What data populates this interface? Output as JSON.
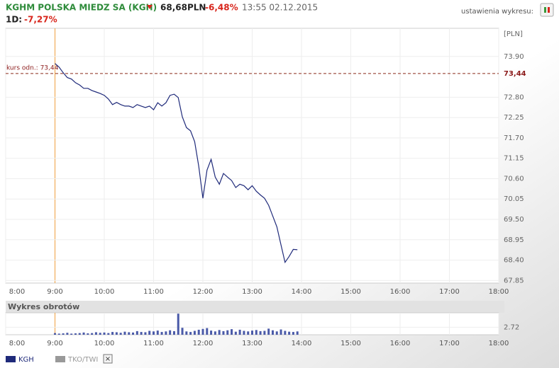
{
  "header": {
    "name": "KGHM POLSKA MIEDZ SA (KGH)",
    "price": "68,68PLN",
    "change": "-6,48%",
    "time": "13:55 02.12.2015",
    "period": "1D:",
    "period_change": "-7,27%",
    "settings": "ustawienia wykresu:"
  },
  "footer": {
    "compare": "TKO/TWI",
    "close": "×"
  },
  "chart_data": [
    {
      "type": "line",
      "y_unit": "[PLN]",
      "x": [
        "9:00",
        "9:05",
        "9:10",
        "9:15",
        "9:20",
        "9:25",
        "9:30",
        "9:35",
        "9:40",
        "9:45",
        "9:50",
        "9:55",
        "10:00",
        "10:05",
        "10:10",
        "10:15",
        "10:20",
        "10:25",
        "10:30",
        "10:35",
        "10:40",
        "10:45",
        "10:50",
        "10:55",
        "11:00",
        "11:05",
        "11:10",
        "11:15",
        "11:20",
        "11:25",
        "11:30",
        "11:35",
        "11:40",
        "11:45",
        "11:50",
        "11:55",
        "12:00",
        "12:05",
        "12:10",
        "12:15",
        "12:20",
        "12:25",
        "12:30",
        "12:35",
        "12:40",
        "12:45",
        "12:50",
        "12:55",
        "13:00",
        "13:05",
        "13:10",
        "13:15",
        "13:20",
        "13:25",
        "13:30",
        "13:35",
        "13:40",
        "13:45",
        "13:50",
        "13:55"
      ],
      "series": [
        {
          "name": "KGH",
          "color": "#1f2a7a",
          "values": [
            73.71,
            73.61,
            73.46,
            73.33,
            73.29,
            73.19,
            73.13,
            73.04,
            73.04,
            72.98,
            72.94,
            72.9,
            72.85,
            72.75,
            72.6,
            72.66,
            72.6,
            72.56,
            72.56,
            72.52,
            72.6,
            72.56,
            72.52,
            72.56,
            72.46,
            72.65,
            72.56,
            72.65,
            72.85,
            72.88,
            72.79,
            72.27,
            71.98,
            71.89,
            71.6,
            70.93,
            70.07,
            70.83,
            71.12,
            70.64,
            70.45,
            70.74,
            70.64,
            70.55,
            70.36,
            70.45,
            70.41,
            70.3,
            70.41,
            70.26,
            70.16,
            70.07,
            69.88,
            69.59,
            69.3,
            68.82,
            68.34,
            68.5,
            68.69,
            68.68
          ]
        }
      ],
      "xlim": [
        "8:00",
        "18:00"
      ],
      "xticks": [
        "8:00",
        "9:00",
        "10:00",
        "11:00",
        "12:00",
        "13:00",
        "14:00",
        "15:00",
        "16:00",
        "17:00",
        "18:00"
      ],
      "ylim": [
        67.78,
        74.66
      ],
      "yticks": [
        {
          "value": 73.9,
          "label": "73.90"
        },
        {
          "value": 72.8,
          "label": "72.80"
        },
        72.25,
        {
          "value": 71.7,
          "label": "71.70"
        },
        71.15,
        {
          "value": 70.6,
          "label": "70.60"
        },
        70.05,
        {
          "value": 69.5,
          "label": "69.50"
        },
        68.95,
        {
          "value": 68.4,
          "label": "68.40"
        },
        67.85
      ],
      "reference": {
        "value": 73.44,
        "label": "73,44"
      },
      "reference_label": "kurs odn.: 73,44",
      "grid": true
    },
    {
      "type": "bar",
      "title": "Wykres obrotów",
      "color": "#4a5aa8",
      "x": [
        "9:00",
        "9:05",
        "9:10",
        "9:15",
        "9:20",
        "9:25",
        "9:30",
        "9:35",
        "9:40",
        "9:45",
        "9:50",
        "9:55",
        "10:00",
        "10:05",
        "10:10",
        "10:15",
        "10:20",
        "10:25",
        "10:30",
        "10:35",
        "10:40",
        "10:45",
        "10:50",
        "10:55",
        "11:00",
        "11:05",
        "11:10",
        "11:15",
        "11:20",
        "11:25",
        "11:30",
        "11:35",
        "11:40",
        "11:45",
        "11:50",
        "11:55",
        "12:00",
        "12:05",
        "12:10",
        "12:15",
        "12:20",
        "12:25",
        "12:30",
        "12:35",
        "12:40",
        "12:45",
        "12:50",
        "12:55",
        "13:00",
        "13:05",
        "13:10",
        "13:15",
        "13:20",
        "13:25",
        "13:30",
        "13:35",
        "13:40",
        "13:45",
        "13:50",
        "13:55"
      ],
      "values": [
        0.6,
        0.4,
        0.5,
        0.7,
        0.4,
        0.5,
        0.6,
        0.8,
        0.5,
        0.6,
        0.9,
        0.7,
        0.8,
        0.6,
        1.0,
        0.9,
        0.7,
        1.1,
        0.9,
        0.8,
        1.3,
        1.0,
        0.9,
        1.4,
        1.2,
        1.5,
        1.0,
        1.2,
        1.6,
        1.3,
        7.6,
        2.5,
        1.2,
        1.0,
        1.4,
        1.8,
        2.1,
        2.4,
        1.5,
        1.2,
        1.7,
        1.3,
        1.6,
        2.0,
        1.1,
        1.8,
        1.4,
        1.2,
        1.5,
        1.7,
        1.3,
        1.4,
        2.2,
        1.6,
        1.2,
        1.9,
        1.4,
        1.1,
        1.0,
        1.2
      ],
      "xlim": [
        "8:00",
        "18:00"
      ],
      "xticks": [
        "8:00",
        "9:00",
        "10:00",
        "11:00",
        "12:00",
        "13:00",
        "14:00",
        "15:00",
        "16:00",
        "17:00",
        "18:00"
      ],
      "ylim": [
        0,
        7.9
      ],
      "yticks": [
        2.72
      ]
    }
  ]
}
